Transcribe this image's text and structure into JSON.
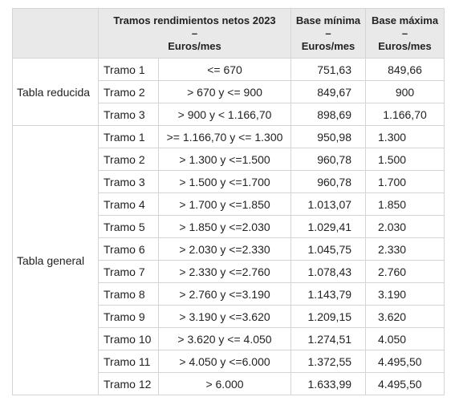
{
  "header": [
    {
      "lines": [
        "Tramos rendimientos netos 2023",
        "–",
        "Euros/mes"
      ]
    },
    {
      "lines": [
        "Base mínima",
        "–",
        "Euros/mes"
      ]
    },
    {
      "lines": [
        "Base máxima",
        "–",
        "Euros/mes"
      ]
    }
  ],
  "groups": [
    {
      "label": "Tabla reducida",
      "rows": [
        [
          "Tramo 1",
          "<= 670",
          "751,63",
          "849,66"
        ],
        [
          "Tramo 2",
          "> 670 y <= 900",
          "849,67",
          "900"
        ],
        [
          "Tramo 3",
          "> 900 y < 1.166,70",
          "898,69",
          "1.166,70"
        ]
      ]
    },
    {
      "label": "Tabla general",
      "rows": [
        [
          "Tramo 1",
          ">= 1.166,70 y <= 1.300",
          "950,98",
          "1.300"
        ],
        [
          "Tramo 2",
          "> 1.300 y <=1.500",
          "960,78",
          "1.500"
        ],
        [
          "Tramo 3",
          "> 1.500 y <=1.700",
          "960,78",
          "1.700"
        ],
        [
          "Tramo 4",
          "> 1.700 y <=1.850",
          "1.013,07",
          "1.850"
        ],
        [
          "Tramo 5",
          "> 1.850 y <=2.030",
          "1.029,41",
          "2.030"
        ],
        [
          "Tramo 6",
          "> 2.030 y <=2.330",
          "1.045,75",
          "2.330"
        ],
        [
          "Tramo 7",
          "> 2.330 y <=2.760",
          "1.078,43",
          "2.760"
        ],
        [
          "Tramo 8",
          "> 2.760 y <=3.190",
          "1.143,79",
          "3.190"
        ],
        [
          "Tramo 9",
          "> 3.190 y <=3.620",
          "1.209,15",
          "3.620"
        ],
        [
          "Tramo 10",
          "> 3.620 y <= 4.050",
          "1.274,51",
          "4.050"
        ],
        [
          "Tramo 11",
          "> 4.050 y <=6.000",
          "1.372,55",
          "4.495,50"
        ],
        [
          "Tramo 12",
          "> 6.000",
          "1.633,99",
          "4.495,50"
        ]
      ]
    }
  ]
}
